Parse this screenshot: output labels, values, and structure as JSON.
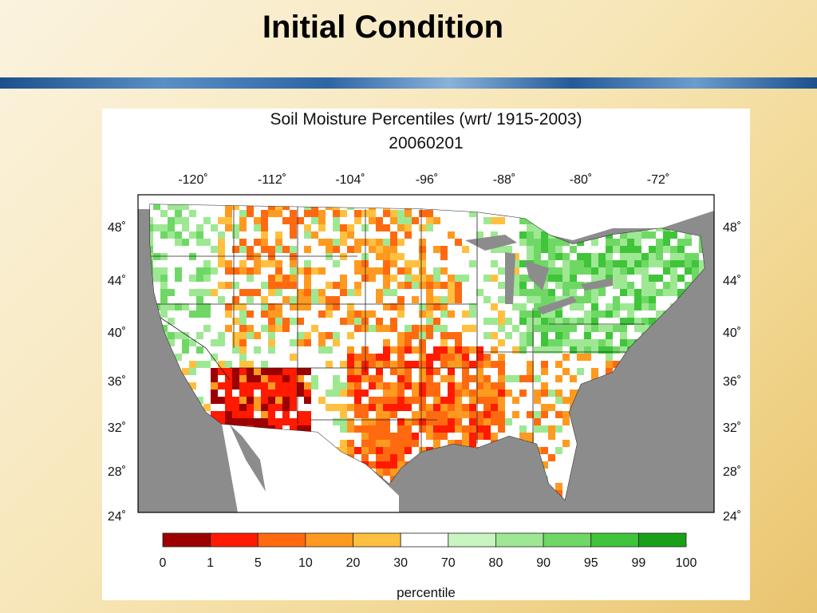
{
  "slide": {
    "title": "Initial Condition"
  },
  "map": {
    "title": "Soil Moisture Percentiles (wrt/ 1915-2003)",
    "date": "20060201",
    "lon_ticks": [
      "-120˚",
      "-112˚",
      "-104˚",
      "-96˚",
      "-88˚",
      "-80˚",
      "-72˚"
    ],
    "lat_ticks": [
      "48˚",
      "44˚",
      "40˚",
      "36˚",
      "32˚",
      "28˚",
      "24˚"
    ],
    "colorbar": {
      "ticks": [
        "0",
        "1",
        "5",
        "10",
        "20",
        "30",
        "70",
        "80",
        "90",
        "95",
        "99",
        "100"
      ],
      "colors": [
        "#9c0000",
        "#ff1a00",
        "#ff6a10",
        "#ff9a20",
        "#ffc040",
        "#ffffff",
        "#c8f5c0",
        "#9ee893",
        "#6fd865",
        "#3fc43a",
        "#18a018"
      ],
      "label": "percentile"
    },
    "colors": {
      "land_other": "#ffffff",
      "water": "#8c8c8c"
    }
  }
}
